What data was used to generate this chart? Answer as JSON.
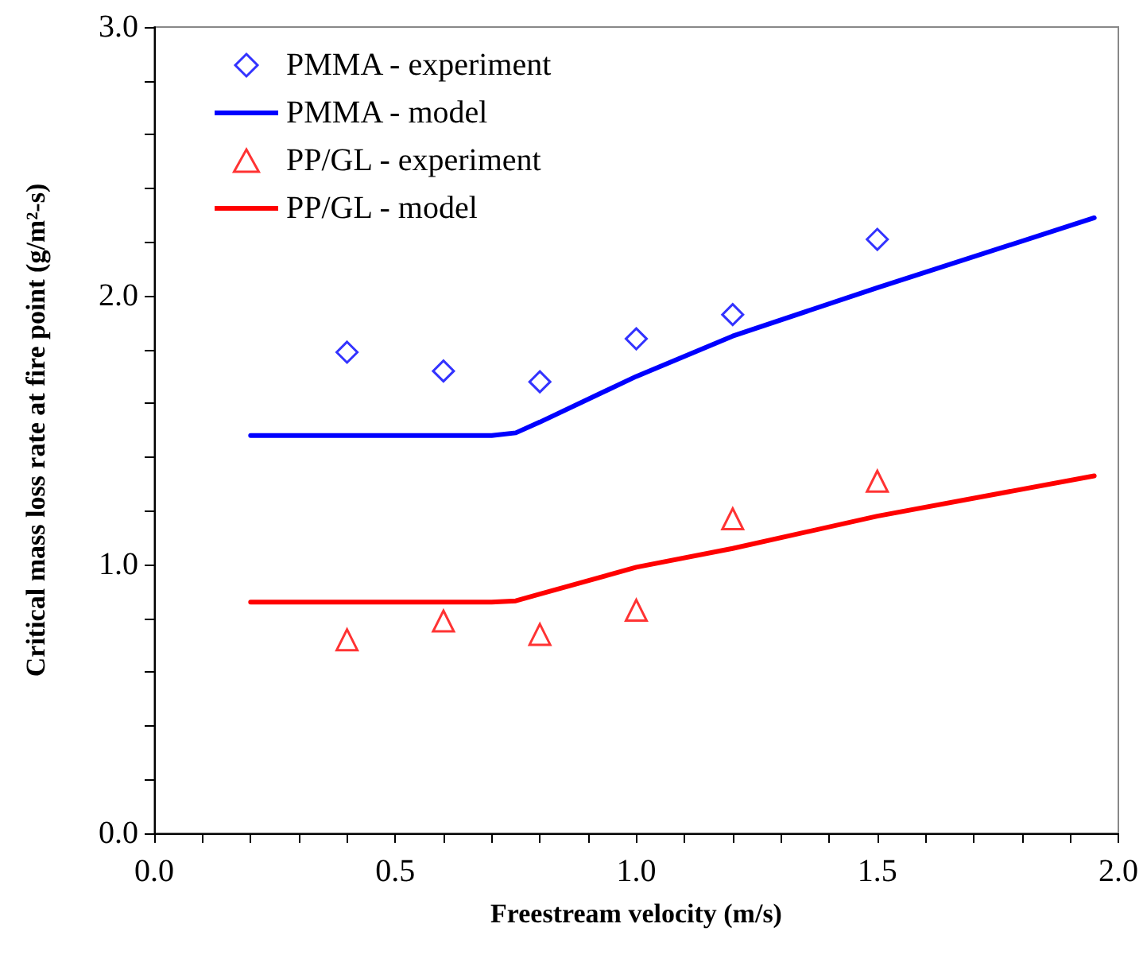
{
  "chart_data": {
    "type": "scatter",
    "xlabel": "Freestream velocity (m/s)",
    "ylabel": "Critical mass loss rate at fire point (g/m²-s)",
    "xlim": [
      0,
      2
    ],
    "ylim": [
      0,
      3
    ],
    "xticks": [
      {
        "value": 0,
        "label": "0.0"
      },
      {
        "value": 0.1,
        "label": null
      },
      {
        "value": 0.2,
        "label": null
      },
      {
        "value": 0.3,
        "label": null
      },
      {
        "value": 0.4,
        "label": null
      },
      {
        "value": 0.5,
        "label": "0.5"
      },
      {
        "value": 0.6,
        "label": null
      },
      {
        "value": 0.7,
        "label": null
      },
      {
        "value": 0.8,
        "label": null
      },
      {
        "value": 0.9,
        "label": null
      },
      {
        "value": 1,
        "label": "1.0"
      },
      {
        "value": 1.1,
        "label": null
      },
      {
        "value": 1.2,
        "label": null
      },
      {
        "value": 1.3,
        "label": null
      },
      {
        "value": 1.4,
        "label": null
      },
      {
        "value": 1.5,
        "label": "1.5"
      },
      {
        "value": 1.6,
        "label": null
      },
      {
        "value": 1.7,
        "label": null
      },
      {
        "value": 1.8,
        "label": null
      },
      {
        "value": 1.9,
        "label": null
      },
      {
        "value": 2,
        "label": "2.0"
      }
    ],
    "yticks": [
      {
        "value": 0,
        "label": "0.0"
      },
      {
        "value": 0.2,
        "label": null
      },
      {
        "value": 0.4,
        "label": null
      },
      {
        "value": 0.6,
        "label": null
      },
      {
        "value": 0.8,
        "label": null
      },
      {
        "value": 1,
        "label": "1.0"
      },
      {
        "value": 1.2,
        "label": null
      },
      {
        "value": 1.4,
        "label": null
      },
      {
        "value": 1.6,
        "label": null
      },
      {
        "value": 1.8,
        "label": null
      },
      {
        "value": 2,
        "label": "2.0"
      },
      {
        "value": 2.2,
        "label": null
      },
      {
        "value": 2.4,
        "label": null
      },
      {
        "value": 2.6,
        "label": null
      },
      {
        "value": 2.8,
        "label": null
      },
      {
        "value": 3,
        "label": "3.0"
      }
    ],
    "grid": false,
    "legend": "top left",
    "series": [
      {
        "name": "PMMA - experiment",
        "marker": "diamond",
        "color": "#0000ff",
        "x": [
          0.4,
          0.6,
          0.8,
          1.0,
          1.2,
          1.5
        ],
        "values": [
          1.79,
          1.72,
          1.68,
          1.84,
          1.93,
          2.21
        ]
      },
      {
        "name": "PMMA - model",
        "type": "line",
        "marker": "none",
        "color": "#0000ff",
        "x": [
          0.2,
          0.45,
          0.7,
          0.75,
          0.8,
          1.0,
          1.2,
          1.5,
          1.95
        ],
        "values": [
          1.48,
          1.48,
          1.48,
          1.49,
          1.53,
          1.7,
          1.85,
          2.03,
          2.29
        ]
      },
      {
        "name": "PP/GL - experiment",
        "marker": "triangle",
        "color": "#ff0000",
        "x": [
          0.4,
          0.6,
          0.8,
          1.0,
          1.2,
          1.5
        ],
        "values": [
          0.72,
          0.79,
          0.74,
          0.83,
          1.17,
          1.31
        ]
      },
      {
        "name": "PP/GL - model",
        "type": "line",
        "marker": "none",
        "color": "#ff0000",
        "x": [
          0.2,
          0.45,
          0.7,
          0.75,
          0.8,
          1.0,
          1.2,
          1.5,
          1.95
        ],
        "values": [
          0.86,
          0.86,
          0.86,
          0.865,
          0.89,
          0.99,
          1.06,
          1.18,
          1.33
        ]
      }
    ]
  }
}
